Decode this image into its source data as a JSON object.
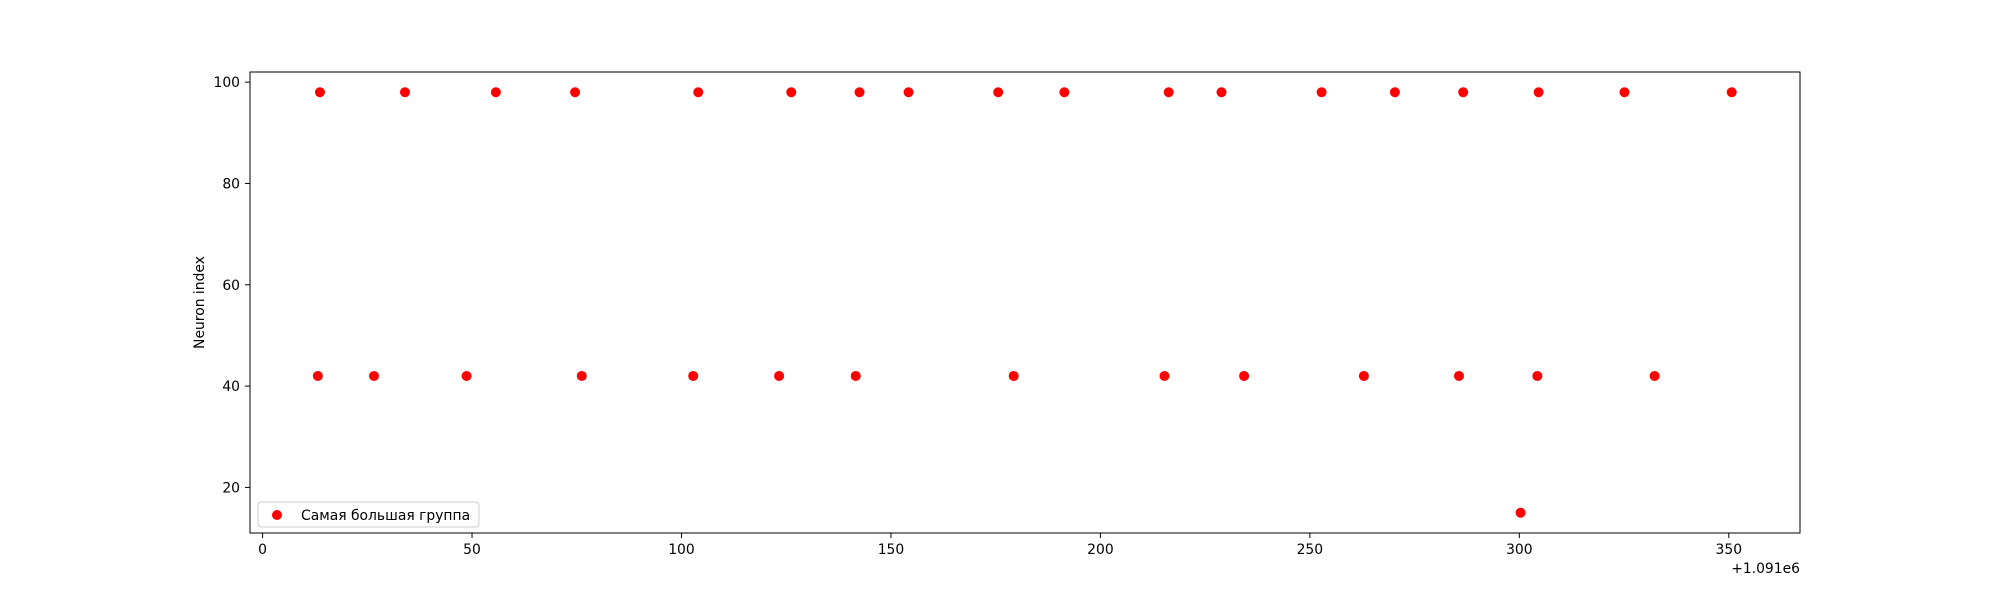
{
  "chart_data": {
    "type": "scatter",
    "xlabel": "",
    "ylabel": "Neuron index",
    "x_offset_label": "+1.091e6",
    "xlim": [
      -3,
      367
    ],
    "ylim": [
      11,
      102
    ],
    "xticks": [
      "0",
      "50",
      "100",
      "150",
      "200",
      "250",
      "300",
      "350"
    ],
    "yticks": [
      "20",
      "40",
      "60",
      "80",
      "100"
    ],
    "legend_position": "lower left",
    "grid": false,
    "series": [
      {
        "name": "Самая большая группа",
        "color": "#ff0000",
        "points": [
          [
            13.2,
            42
          ],
          [
            13.7,
            98
          ],
          [
            26.6,
            42
          ],
          [
            34,
            98
          ],
          [
            48.7,
            42
          ],
          [
            55.7,
            98
          ],
          [
            74.6,
            98
          ],
          [
            76.2,
            42
          ],
          [
            102.8,
            42
          ],
          [
            104,
            98
          ],
          [
            123.3,
            42
          ],
          [
            126.2,
            98
          ],
          [
            141.6,
            42
          ],
          [
            142.5,
            98
          ],
          [
            154.2,
            98
          ],
          [
            175.6,
            98
          ],
          [
            179.3,
            42
          ],
          [
            191.4,
            98
          ],
          [
            215.3,
            42
          ],
          [
            216.3,
            98
          ],
          [
            228.9,
            98
          ],
          [
            234.3,
            42
          ],
          [
            252.8,
            98
          ],
          [
            262.9,
            42
          ],
          [
            270.3,
            98
          ],
          [
            285.6,
            42
          ],
          [
            286.6,
            98
          ],
          [
            300.3,
            15
          ],
          [
            304.3,
            42
          ],
          [
            304.6,
            98
          ],
          [
            325.1,
            98
          ],
          [
            332.3,
            42
          ],
          [
            350.7,
            98
          ]
        ]
      }
    ]
  }
}
